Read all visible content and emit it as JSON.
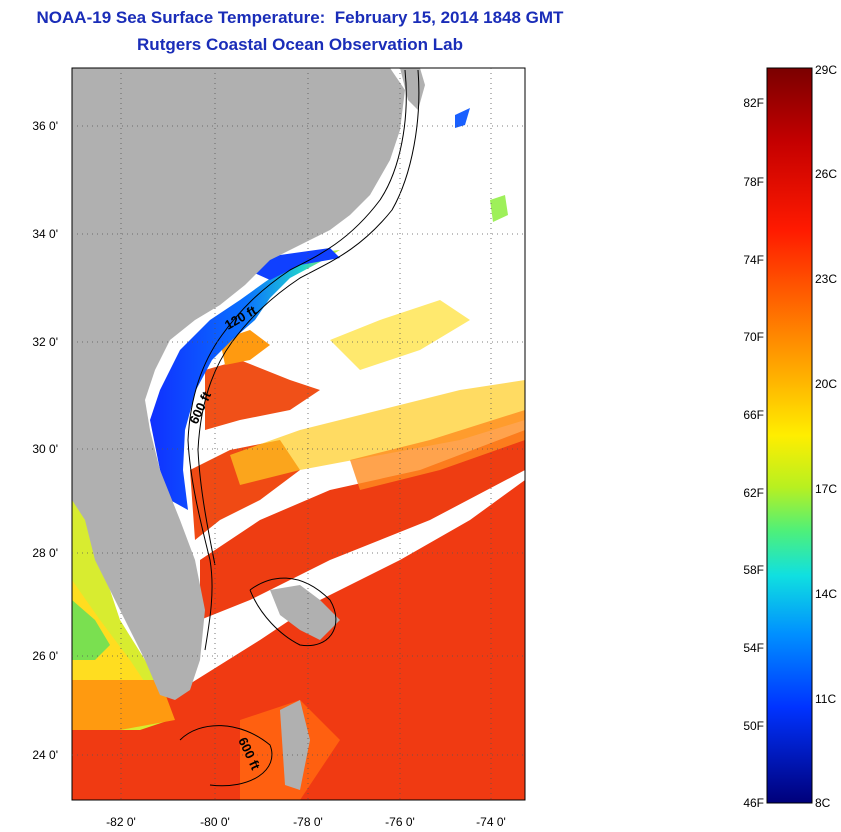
{
  "header": {
    "title": "NOAA-19 Sea Surface Temperature:  February 15, 2014 1848 GMT",
    "subtitle": "Rutgers Coastal Ocean Observation Lab"
  },
  "map": {
    "lat_labels": [
      "36 0'",
      "34 0'",
      "32 0'",
      "30 0'",
      "28 0'",
      "26 0'",
      "24 0'"
    ],
    "lon_labels": [
      "-82 0'",
      "-80 0'",
      "-78 0'",
      "-76 0'",
      "-74 0'"
    ],
    "contour_labels": {
      "shelf_120": "120 ft",
      "shelf_600_north": "600 ft",
      "shelf_600_south": "600 ft"
    }
  },
  "colorbar": {
    "fahrenheit_labels": [
      "82F",
      "78F",
      "74F",
      "70F",
      "66F",
      "62F",
      "58F",
      "54F",
      "50F",
      "46F"
    ],
    "celsius_labels": [
      "29C",
      "26C",
      "23C",
      "20C",
      "17C",
      "14C",
      "11C",
      "8C"
    ],
    "colors": [
      "#7a0000",
      "#c40000",
      "#ff1a00",
      "#ff6600",
      "#ffb000",
      "#ffee00",
      "#b8f020",
      "#4ef07a",
      "#10e0e0",
      "#0090ff",
      "#0033ff",
      "#00007a"
    ]
  },
  "colors": {
    "title": "#1a2db8",
    "land": "#b0b0b0",
    "cloud": "#ffffff"
  }
}
